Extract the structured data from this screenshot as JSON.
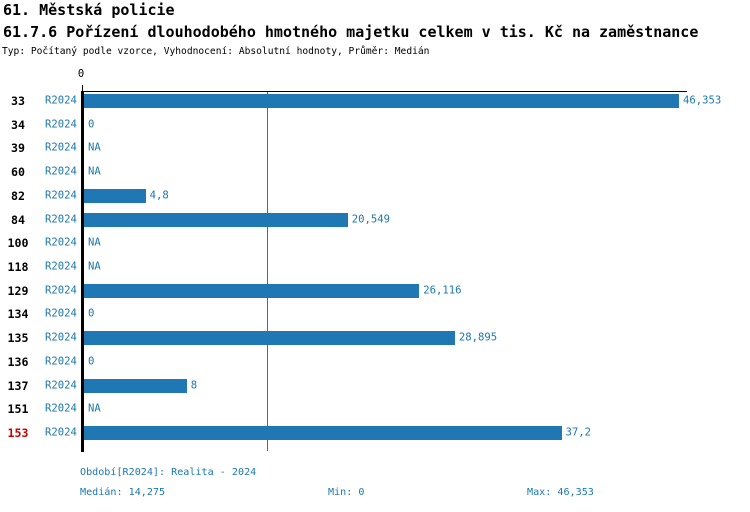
{
  "header": {
    "title": "61. Městská policie",
    "subtitle": "61.7.6 Pořízení dlouhodobého hmotného majetku celkem v tis. Kč na zaměstnance",
    "meta": "Typ: Počítaný podle vzorce, Vyhodnocení: Absolutní hodnoty, Průměr: Medián"
  },
  "colors": {
    "bar": "#1f77b4",
    "accent_text": "#1c78ad",
    "median_line": "#2478ad",
    "axis": "#000000",
    "highlight_row": "#cc0000",
    "background": "#ffffff"
  },
  "chart_data": {
    "type": "bar",
    "orientation": "horizontal",
    "title": "61.7.6 Pořízení dlouhodobého hmotného majetku celkem v tis. Kč na zaměstnance",
    "unit": "tis. Kč na zaměstnance",
    "series_label": "R2024",
    "categories": [
      "33",
      "34",
      "39",
      "60",
      "82",
      "84",
      "100",
      "118",
      "129",
      "134",
      "135",
      "136",
      "137",
      "151",
      "153"
    ],
    "values": [
      46.353,
      0,
      null,
      null,
      4.8,
      20.549,
      null,
      null,
      26.116,
      0,
      28.895,
      0,
      8,
      null,
      37.2
    ],
    "value_labels": [
      "46,353",
      "0",
      "NA",
      "NA",
      "4,8",
      "20,549",
      "NA",
      "NA",
      "26,116",
      "0",
      "28,895",
      "0",
      "8",
      "NA",
      "37,2"
    ],
    "highlighted_category": "153",
    "xlim": [
      0,
      46.353
    ],
    "x_axis_tick_labels": [
      "0"
    ],
    "median": 14.275,
    "median_label": "14,275",
    "min": 0,
    "max": 46.353,
    "grid": false,
    "legend_position": "none"
  },
  "footer": {
    "period": "Období[R2024]: Realita - 2024",
    "median": "Medián: 14,275",
    "min": "Min: 0",
    "max": "Max: 46,353"
  }
}
